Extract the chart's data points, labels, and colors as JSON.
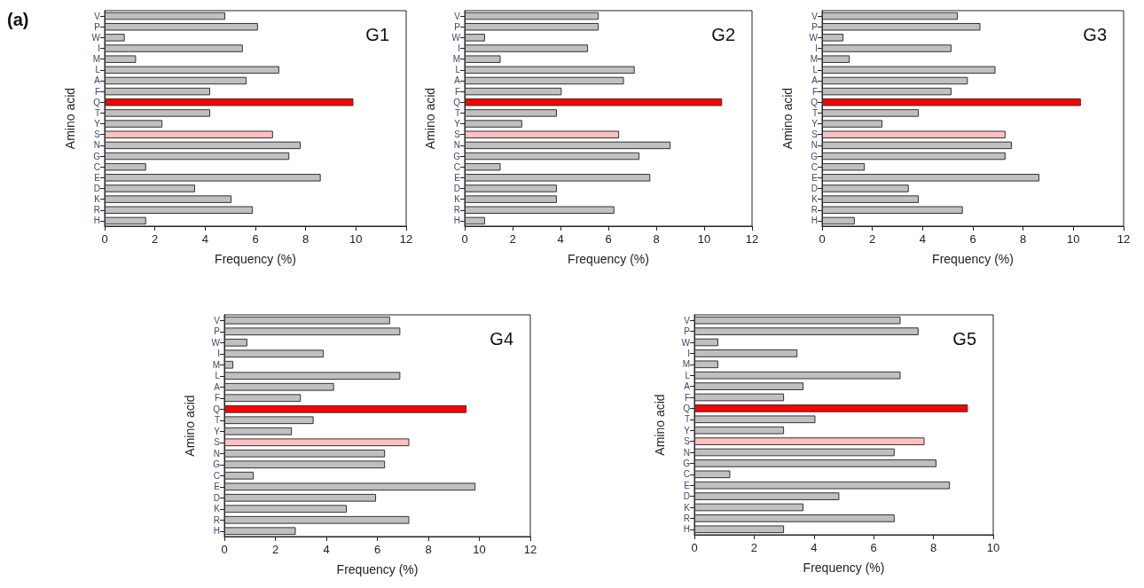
{
  "chart_data": [
    {
      "type": "bar",
      "orientation": "horizontal",
      "title": "G1",
      "xlabel": "Frequency (%)",
      "ylabel": "Amino acid",
      "annotations": [
        "(a)"
      ],
      "categories": [
        "V",
        "P",
        "W",
        "I",
        "M",
        "L",
        "A",
        "F",
        "Q",
        "T",
        "Y",
        "S",
        "N",
        "G",
        "C",
        "E",
        "D",
        "K",
        "R",
        "H"
      ],
      "values": [
        4.8,
        6.1,
        0.8,
        5.5,
        1.25,
        6.95,
        5.65,
        4.2,
        9.9,
        4.2,
        2.3,
        6.7,
        7.8,
        7.35,
        1.65,
        8.6,
        3.6,
        5.05,
        5.9,
        1.65
      ],
      "colors": [
        "#c0c0c0",
        "#c0c0c0",
        "#c0c0c0",
        "#c0c0c0",
        "#c0c0c0",
        "#c0c0c0",
        "#c0c0c0",
        "#c0c0c0",
        "#ff0000",
        "#c0c0c0",
        "#c0c0c0",
        "#ffc0c0",
        "#c0c0c0",
        "#c0c0c0",
        "#c0c0c0",
        "#c0c0c0",
        "#c0c0c0",
        "#c0c0c0",
        "#c0c0c0",
        "#c0c0c0"
      ],
      "xlim": [
        0,
        12
      ],
      "xticks": [
        0,
        2,
        4,
        6,
        8,
        10,
        12
      ]
    },
    {
      "type": "bar",
      "orientation": "horizontal",
      "title": "G2",
      "xlabel": "Frequency (%)",
      "ylabel": "Amino acid",
      "categories": [
        "V",
        "P",
        "W",
        "I",
        "M",
        "L",
        "A",
        "F",
        "Q",
        "T",
        "Y",
        "S",
        "N",
        "G",
        "C",
        "E",
        "D",
        "K",
        "R",
        "H"
      ],
      "values": [
        5.6,
        5.6,
        0.85,
        5.15,
        1.5,
        7.1,
        6.65,
        4.05,
        10.75,
        3.85,
        2.4,
        6.45,
        8.6,
        7.3,
        1.5,
        7.75,
        3.85,
        3.85,
        6.25,
        0.85
      ],
      "colors": [
        "#c0c0c0",
        "#c0c0c0",
        "#c0c0c0",
        "#c0c0c0",
        "#c0c0c0",
        "#c0c0c0",
        "#c0c0c0",
        "#c0c0c0",
        "#ff0000",
        "#c0c0c0",
        "#c0c0c0",
        "#ffc0c0",
        "#c0c0c0",
        "#c0c0c0",
        "#c0c0c0",
        "#c0c0c0",
        "#c0c0c0",
        "#c0c0c0",
        "#c0c0c0",
        "#c0c0c0"
      ],
      "xlim": [
        0,
        12
      ],
      "xticks": [
        0,
        2,
        4,
        6,
        8,
        10,
        12
      ]
    },
    {
      "type": "bar",
      "orientation": "horizontal",
      "title": "G3",
      "xlabel": "Frequency (%)",
      "ylabel": "Amino acid",
      "categories": [
        "V",
        "P",
        "W",
        "I",
        "M",
        "L",
        "A",
        "F",
        "Q",
        "T",
        "Y",
        "S",
        "N",
        "G",
        "C",
        "E",
        "D",
        "K",
        "R",
        "H"
      ],
      "values": [
        5.4,
        6.3,
        0.85,
        5.15,
        1.1,
        6.9,
        5.8,
        5.15,
        10.3,
        3.85,
        2.4,
        7.3,
        7.55,
        7.3,
        1.7,
        8.65,
        3.45,
        3.85,
        5.6,
        1.3
      ],
      "colors": [
        "#c0c0c0",
        "#c0c0c0",
        "#c0c0c0",
        "#c0c0c0",
        "#c0c0c0",
        "#c0c0c0",
        "#c0c0c0",
        "#c0c0c0",
        "#ff0000",
        "#c0c0c0",
        "#c0c0c0",
        "#ffc0c0",
        "#c0c0c0",
        "#c0c0c0",
        "#c0c0c0",
        "#c0c0c0",
        "#c0c0c0",
        "#c0c0c0",
        "#c0c0c0",
        "#c0c0c0"
      ],
      "xlim": [
        0,
        12
      ],
      "xticks": [
        0,
        2,
        4,
        6,
        8,
        10,
        12
      ]
    },
    {
      "type": "bar",
      "orientation": "horizontal",
      "title": "G4",
      "xlabel": "Frequency (%)",
      "ylabel": "Amino acid",
      "categories": [
        "V",
        "P",
        "W",
        "I",
        "M",
        "L",
        "A",
        "F",
        "Q",
        "T",
        "Y",
        "S",
        "N",
        "G",
        "C",
        "E",
        "D",
        "K",
        "R",
        "H"
      ],
      "values": [
        6.5,
        6.9,
        0.9,
        3.9,
        0.35,
        6.9,
        4.3,
        3.0,
        9.5,
        3.5,
        2.65,
        7.25,
        6.3,
        6.3,
        1.15,
        9.85,
        5.95,
        4.8,
        7.25,
        2.8
      ],
      "colors": [
        "#c0c0c0",
        "#c0c0c0",
        "#c0c0c0",
        "#c0c0c0",
        "#c0c0c0",
        "#c0c0c0",
        "#c0c0c0",
        "#c0c0c0",
        "#ff0000",
        "#c0c0c0",
        "#c0c0c0",
        "#ffc0c0",
        "#c0c0c0",
        "#c0c0c0",
        "#c0c0c0",
        "#c0c0c0",
        "#c0c0c0",
        "#c0c0c0",
        "#c0c0c0",
        "#c0c0c0"
      ],
      "xlim": [
        0,
        12
      ],
      "xticks": [
        0,
        2,
        4,
        6,
        8,
        10,
        12
      ]
    },
    {
      "type": "bar",
      "orientation": "horizontal",
      "title": "G5",
      "xlabel": "Frequency (%)",
      "ylabel": "Amino acid",
      "categories": [
        "V",
        "P",
        "W",
        "I",
        "M",
        "L",
        "A",
        "F",
        "Q",
        "T",
        "Y",
        "S",
        "N",
        "G",
        "C",
        "E",
        "D",
        "K",
        "R",
        "H"
      ],
      "values": [
        6.9,
        7.5,
        0.8,
        3.45,
        0.8,
        6.9,
        3.65,
        3.0,
        9.15,
        4.05,
        3.0,
        7.7,
        6.7,
        8.1,
        1.2,
        8.55,
        4.85,
        3.65,
        6.7,
        3.0
      ],
      "colors": [
        "#c0c0c0",
        "#c0c0c0",
        "#c0c0c0",
        "#c0c0c0",
        "#c0c0c0",
        "#c0c0c0",
        "#c0c0c0",
        "#c0c0c0",
        "#ff0000",
        "#c0c0c0",
        "#c0c0c0",
        "#ffc0c0",
        "#c0c0c0",
        "#c0c0c0",
        "#c0c0c0",
        "#c0c0c0",
        "#c0c0c0",
        "#c0c0c0",
        "#c0c0c0",
        "#c0c0c0"
      ],
      "xlim": [
        0,
        10
      ],
      "xticks": [
        0,
        2,
        4,
        6,
        8,
        10
      ]
    }
  ]
}
